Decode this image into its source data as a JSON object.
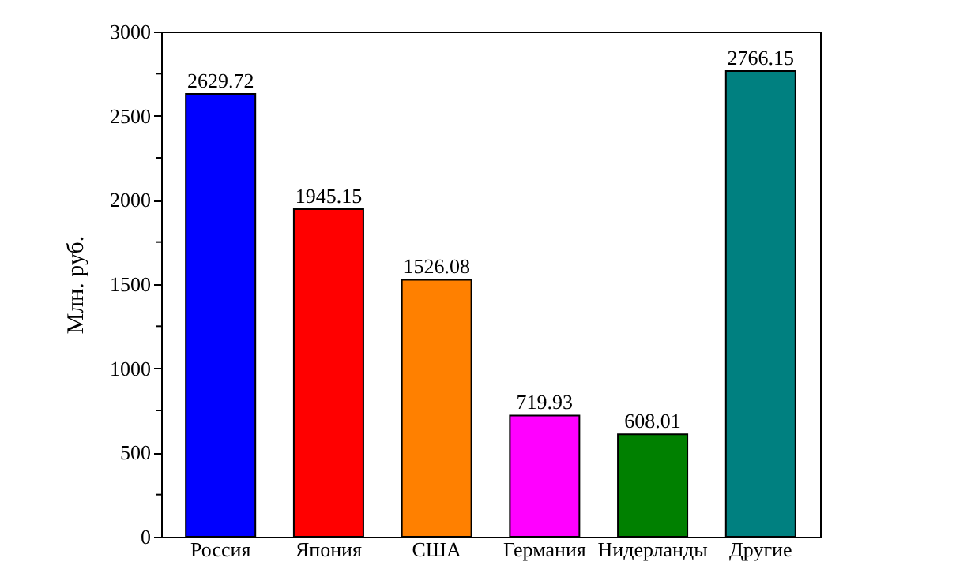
{
  "chart_data": {
    "type": "bar",
    "ylabel": "Млн. руб.",
    "categories": [
      "Россия",
      "Япония",
      "США",
      "Германия",
      "Нидерланды",
      "Другие"
    ],
    "values": [
      2629.72,
      1945.15,
      1526.08,
      719.93,
      608.01,
      2766.15
    ],
    "colors": [
      "#0000ff",
      "#ff0000",
      "#ff8000",
      "#ff00ff",
      "#008000",
      "#008080"
    ],
    "ylim": [
      0,
      3000
    ],
    "yticks": [
      0,
      {
        "value": 250,
        "label": null
      },
      500,
      {
        "value": 750,
        "label": null
      },
      1000,
      {
        "value": 1250,
        "label": null
      },
      1500,
      {
        "value": 1750,
        "label": null
      },
      2000,
      {
        "value": 2250,
        "label": null
      },
      2500,
      {
        "value": 2750,
        "label": null
      },
      3000
    ],
    "data_labels": true,
    "grid": false
  }
}
